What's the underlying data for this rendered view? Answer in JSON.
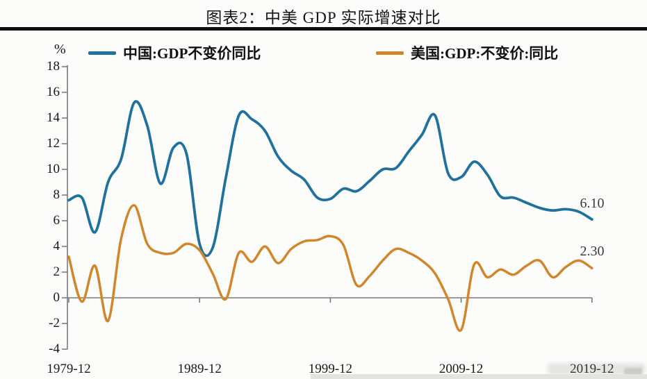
{
  "header": {
    "title": "图表2：中美 GDP 实际增速对比"
  },
  "legend": [
    {
      "label": "中国:GDP不变价同比",
      "color": "#1F729E"
    },
    {
      "label": "美国:GDP:不变价:同比",
      "color": "#D2862B"
    }
  ],
  "axes": {
    "y_unit": "%",
    "yticks": [
      18,
      16,
      14,
      12,
      10,
      8,
      6,
      4,
      2,
      0,
      -2,
      -4
    ],
    "xticks": [
      {
        "label": "1979-12",
        "year": 1979
      },
      {
        "label": "1989-12",
        "year": 1989
      },
      {
        "label": "1999-12",
        "year": 1999
      },
      {
        "label": "2009-12",
        "year": 2009
      },
      {
        "label": "2019-12",
        "year": 2019
      }
    ]
  },
  "end_labels": {
    "china": "6.10",
    "us": "2.30"
  },
  "chart_data": {
    "type": "line",
    "title": "图表2：中美 GDP 实际增速对比",
    "xlabel": "",
    "ylabel": "%",
    "ylim": [
      -4,
      18
    ],
    "xlim": [
      1979,
      2019
    ],
    "grid": false,
    "legend_position": "top",
    "x": [
      1979,
      1980,
      1981,
      1982,
      1983,
      1984,
      1985,
      1986,
      1987,
      1988,
      1989,
      1990,
      1991,
      1992,
      1993,
      1994,
      1995,
      1996,
      1997,
      1998,
      1999,
      2000,
      2001,
      2002,
      2003,
      2004,
      2005,
      2006,
      2007,
      2008,
      2009,
      2010,
      2011,
      2012,
      2013,
      2014,
      2015,
      2016,
      2017,
      2018,
      2019
    ],
    "series": [
      {
        "name": "中国:GDP不变价同比",
        "color": "#1F729E",
        "end_label": "6.10",
        "values": [
          7.6,
          7.8,
          5.1,
          9.0,
          10.8,
          15.2,
          13.4,
          8.9,
          11.7,
          11.2,
          4.2,
          3.9,
          9.3,
          14.2,
          13.9,
          13.0,
          11.0,
          9.9,
          9.2,
          7.8,
          7.7,
          8.5,
          8.3,
          9.1,
          10.0,
          10.1,
          11.4,
          12.7,
          14.2,
          9.7,
          9.4,
          10.6,
          9.6,
          7.9,
          7.8,
          7.4,
          7.0,
          6.8,
          6.9,
          6.7,
          6.1
        ]
      },
      {
        "name": "美国:GDP:不变价:同比",
        "color": "#D2862B",
        "end_label": "2.30",
        "values": [
          3.2,
          -0.3,
          2.5,
          -1.8,
          4.6,
          7.2,
          4.2,
          3.5,
          3.5,
          4.2,
          3.7,
          1.9,
          -0.1,
          3.5,
          2.8,
          4.0,
          2.7,
          3.8,
          4.4,
          4.5,
          4.8,
          4.1,
          1.0,
          1.7,
          2.9,
          3.8,
          3.5,
          2.9,
          1.9,
          -0.1,
          -2.5,
          2.6,
          1.6,
          2.2,
          1.8,
          2.5,
          2.9,
          1.6,
          2.4,
          2.9,
          2.3
        ]
      }
    ]
  }
}
